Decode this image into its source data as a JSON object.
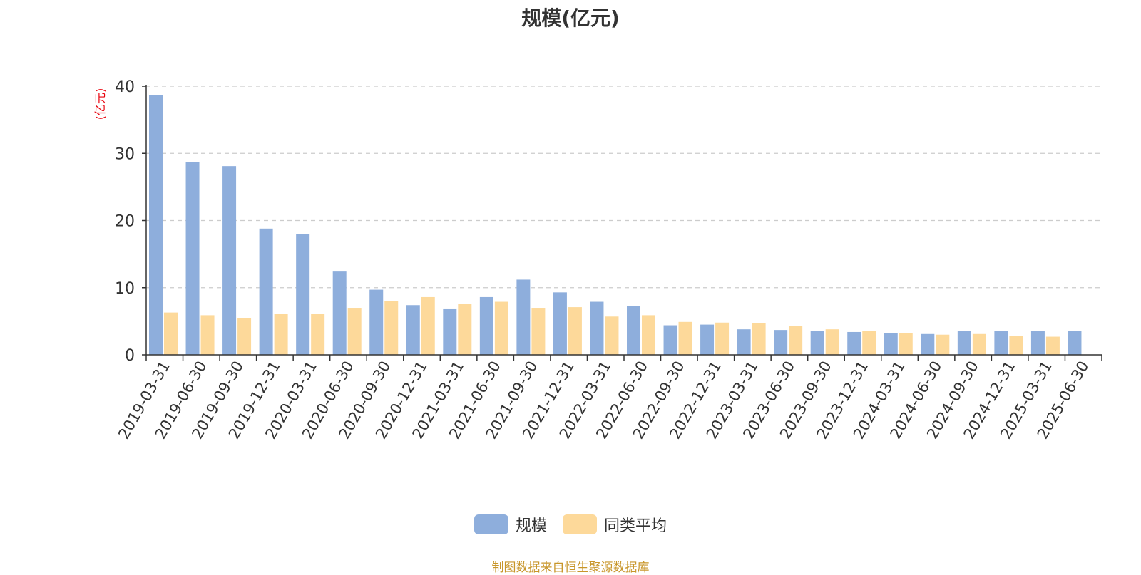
{
  "colors": {
    "series_1": "#8eaedc",
    "series_2": "#fdd99a",
    "unit_label": "#e8000b",
    "source_note": "#c8962a",
    "grid": "#cccccc",
    "axis": "#333333"
  },
  "chart_data": {
    "type": "bar",
    "title": "规模(亿元)",
    "ylabel": "(亿元)",
    "ylim": [
      0,
      40
    ],
    "yticks": [
      0,
      10,
      20,
      30,
      40
    ],
    "grid": "horizontal dashed",
    "legend_position": "bottom-center",
    "categories": [
      "2019-03-31",
      "2019-06-30",
      "2019-09-30",
      "2019-12-31",
      "2020-03-31",
      "2020-06-30",
      "2020-09-30",
      "2020-12-31",
      "2021-03-31",
      "2021-06-30",
      "2021-09-30",
      "2021-12-31",
      "2022-03-31",
      "2022-06-30",
      "2022-09-30",
      "2022-12-31",
      "2023-03-31",
      "2023-06-30",
      "2023-09-30",
      "2023-12-31",
      "2024-03-31",
      "2024-06-30",
      "2024-09-30",
      "2024-12-31",
      "2025-03-31",
      "2025-06-30"
    ],
    "series": [
      {
        "name": "规模",
        "values": [
          38.7,
          28.7,
          28.1,
          18.8,
          18.0,
          12.4,
          9.7,
          7.4,
          6.9,
          8.6,
          11.2,
          9.3,
          7.9,
          7.3,
          4.4,
          4.5,
          3.8,
          3.7,
          3.6,
          3.4,
          3.2,
          3.1,
          3.5,
          3.5,
          3.5,
          3.6
        ]
      },
      {
        "name": "同类平均",
        "values": [
          6.3,
          5.9,
          5.5,
          6.1,
          6.1,
          7.0,
          8.0,
          8.6,
          7.6,
          7.9,
          7.0,
          7.1,
          5.7,
          5.9,
          4.9,
          4.8,
          4.7,
          4.3,
          3.8,
          3.5,
          3.2,
          3.0,
          3.1,
          2.8,
          2.7,
          null
        ]
      }
    ]
  },
  "source_note": "制图数据来自恒生聚源数据库"
}
